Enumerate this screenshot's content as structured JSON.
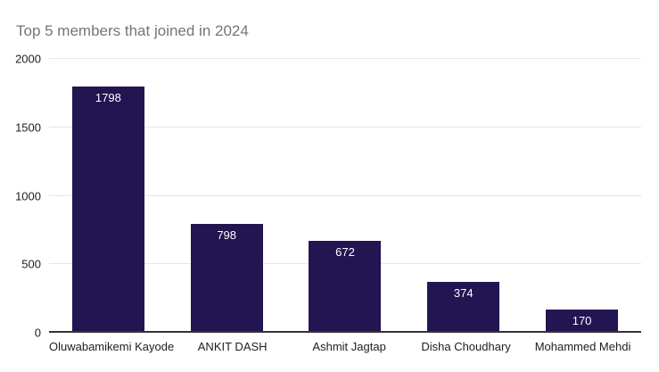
{
  "title": "Top 5 members that joined in 2024",
  "colors": {
    "bar": "#221551",
    "title_text": "#757575",
    "gridline": "#e6e6e6",
    "axis_line": "#333333",
    "tick_label": "#1e1e1e",
    "value_label": "#ffffff",
    "background": "#ffffff"
  },
  "chart_data": {
    "type": "bar",
    "title": "Top 5 members that joined in 2024",
    "categories": [
      "Oluwabamikemi Kayode",
      "ANKIT DASH",
      "Ashmit Jagtap",
      "Disha Choudhary",
      "Mohammed Mehdi"
    ],
    "values": [
      1798,
      798,
      672,
      374,
      170
    ],
    "xlabel": "",
    "ylabel": "",
    "ylim": [
      0,
      2000
    ],
    "yticks": [
      0,
      500,
      1000,
      1500,
      2000
    ],
    "grid": true,
    "legend_position": "none",
    "value_labels_position": "inside-top",
    "bar_color": "#221551"
  }
}
